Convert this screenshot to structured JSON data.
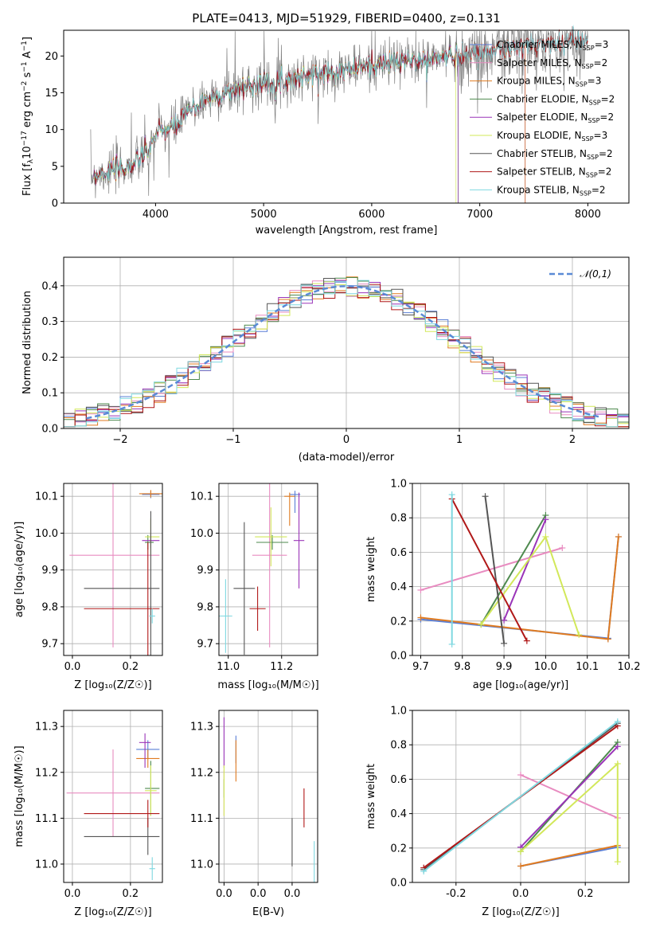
{
  "figure": {
    "title": "PLATE=0413, MJD=51929, FIBERID=0400, z=0.131"
  },
  "colors": {
    "Chabrier MILES": "#5a7fd6",
    "Salpeter MILES": "#e88bc0",
    "Kroupa MILES": "#e07b20",
    "Chabrier ELODIE": "#4e8a4e",
    "Salpeter ELODIE": "#9a34b8",
    "Kroupa ELODIE": "#d2e85a",
    "Chabrier STELIB": "#555555",
    "Salpeter STELIB": "#b01818",
    "Kroupa STELIB": "#7fd8e0"
  },
  "chart_data": [
    {
      "id": "spectrum",
      "type": "line",
      "xlabel": "wavelength [Angstrom, rest frame]",
      "ylabel_parts": {
        "pre": "Flux [f",
        "sub": "λ",
        "mid": "10",
        "sup1": "−17",
        "post1": " erg cm",
        "sup2": "−2",
        "post2": " s",
        "sup3": "−1",
        "post3": " A",
        "sup4": "−1",
        "end": "]"
      },
      "xlim": [
        3150,
        8380
      ],
      "ylim": [
        0,
        23.5
      ],
      "xticks": [
        4000,
        5000,
        6000,
        7000,
        8000
      ],
      "yticks": [
        0,
        5,
        10,
        15,
        20
      ],
      "grid": false,
      "legend_position": "top-right",
      "legend": [
        {
          "model": "Chabrier MILES",
          "nssp": "3"
        },
        {
          "model": "Salpeter MILES",
          "nssp": "2"
        },
        {
          "model": "Kroupa MILES",
          "nssp": "3"
        },
        {
          "model": "Chabrier ELODIE",
          "nssp": "2"
        },
        {
          "model": "Salpeter ELODIE",
          "nssp": "2"
        },
        {
          "model": "Kroupa ELODIE",
          "nssp": "3"
        },
        {
          "model": "Chabrier STELIB",
          "nssp": "2"
        },
        {
          "model": "Salpeter STELIB",
          "nssp": "2"
        },
        {
          "model": "Kroupa STELIB",
          "nssp": "2"
        }
      ],
      "legend_label_mid": ", N",
      "legend_label_sub": "SSP",
      "legend_label_eq": "=",
      "continuum": [
        [
          3400,
          3.8
        ],
        [
          3600,
          4.4
        ],
        [
          3800,
          5.2
        ],
        [
          3950,
          7.5
        ],
        [
          4000,
          9.5
        ],
        [
          4200,
          10.5
        ],
        [
          4300,
          12.5
        ],
        [
          4500,
          14.3
        ],
        [
          4700,
          15.2
        ],
        [
          4900,
          16.2
        ],
        [
          5100,
          16.4
        ],
        [
          5300,
          17.0
        ],
        [
          5500,
          17.6
        ],
        [
          5700,
          18.0
        ],
        [
          5900,
          18.5
        ],
        [
          6100,
          18.9
        ],
        [
          6300,
          19.3
        ],
        [
          6500,
          19.4
        ],
        [
          6700,
          20.0
        ],
        [
          6900,
          20.3
        ],
        [
          7100,
          20.7
        ],
        [
          7300,
          21.0
        ],
        [
          7500,
          21.5
        ],
        [
          7700,
          21.8
        ],
        [
          7900,
          22.4
        ],
        [
          8000,
          22.0
        ]
      ],
      "model_ends": {
        "Chabrier MILES": 7420,
        "Salpeter MILES": 7420,
        "Kroupa MILES": 7420,
        "Chabrier ELODIE": 6800,
        "Salpeter ELODIE": 6800,
        "Kroupa ELODIE": 6780,
        "Chabrier STELIB": 8000,
        "Salpeter STELIB": 8000,
        "Kroupa STELIB": 8000
      }
    },
    {
      "id": "residuals",
      "type": "histogram",
      "xlabel": "(data-model)/error",
      "ylabel": "Normed distribution",
      "xlim": [
        -2.5,
        2.5
      ],
      "ylim": [
        0,
        0.48
      ],
      "xticks": [
        -2,
        -1,
        0,
        1,
        2
      ],
      "yticks": [
        0.0,
        0.1,
        0.2,
        0.3,
        0.4
      ],
      "grid": true,
      "legend_position": "top-right",
      "reference_curve": {
        "name": "𝒩(0,1)",
        "mean": 0,
        "sigma": 1,
        "color": "#5a8ad6"
      },
      "bins": 50
    },
    {
      "id": "age-vs-Z",
      "type": "scatter",
      "xlabel": "Z [log₁₀(Z/Z☉)]",
      "ylabel": "age  [log₁₀(age/yr)]",
      "xlim": [
        -0.03,
        0.31
      ],
      "ylim": [
        9.668,
        10.135
      ],
      "xticks": [
        0.0,
        0.2
      ],
      "yticks": [
        9.7,
        9.8,
        9.9,
        10.0,
        10.1
      ],
      "grid": true,
      "points": [
        {
          "model": "Chabrier MILES",
          "x": 0.27,
          "y": 10.105,
          "xerr": [
            0.03,
            0.03
          ],
          "yerr": [
            0.01,
            0.01
          ]
        },
        {
          "model": "Salpeter MILES",
          "x": 0.14,
          "y": 9.94,
          "xerr": [
            0.15,
            0.16
          ],
          "yerr": [
            0.25,
            0.25
          ]
        },
        {
          "model": "Kroupa MILES",
          "x": 0.27,
          "y": 10.107,
          "xerr": [
            0.04,
            0.04
          ],
          "yerr": [
            0.01,
            0.01
          ]
        },
        {
          "model": "Chabrier ELODIE",
          "x": 0.26,
          "y": 9.975,
          "xerr": [
            0.01,
            0.02
          ],
          "yerr": [
            0.02,
            0.02
          ]
        },
        {
          "model": "Salpeter ELODIE",
          "x": 0.27,
          "y": 9.98,
          "xerr": [
            0.03,
            0.03
          ],
          "yerr": [
            0.02,
            0.02
          ]
        },
        {
          "model": "Kroupa ELODIE",
          "x": 0.27,
          "y": 9.99,
          "xerr": [
            0.02,
            0.03
          ],
          "yerr": [
            0.05,
            0.05
          ]
        },
        {
          "model": "Chabrier STELIB",
          "x": 0.27,
          "y": 9.85,
          "xerr": [
            0.23,
            0.03
          ],
          "yerr": [
            0.21,
            0.21
          ]
        },
        {
          "model": "Salpeter STELIB",
          "x": 0.26,
          "y": 9.795,
          "xerr": [
            0.22,
            0.04
          ],
          "yerr": [
            0.17,
            0.18
          ]
        },
        {
          "model": "Kroupa STELIB",
          "x": 0.275,
          "y": 9.775,
          "xerr": [
            0.01,
            0.01
          ],
          "yerr": [
            0.02,
            0.02
          ]
        }
      ]
    },
    {
      "id": "age-vs-mass",
      "type": "scatter",
      "xlabel": "mass [log₁₀(M/M☉)]",
      "ylabel": "",
      "xlim": [
        10.965,
        11.335
      ],
      "ylim": [
        9.668,
        10.135
      ],
      "xticks": [
        11.0,
        11.2
      ],
      "yticks": [
        9.7,
        9.8,
        9.9,
        10.0,
        10.1
      ],
      "grid": true,
      "points": [
        {
          "model": "Chabrier MILES",
          "x": 11.25,
          "y": 10.105,
          "xerr": [
            0.02,
            0.02
          ],
          "yerr": [
            0.05,
            0.01
          ]
        },
        {
          "model": "Salpeter MILES",
          "x": 11.155,
          "y": 9.94,
          "xerr": [
            0.065,
            0.065
          ],
          "yerr": [
            0.25,
            0.25
          ]
        },
        {
          "model": "Kroupa MILES",
          "x": 11.23,
          "y": 10.1,
          "xerr": [
            0.02,
            0.02
          ],
          "yerr": [
            0.08,
            0.01
          ]
        },
        {
          "model": "Chabrier ELODIE",
          "x": 11.165,
          "y": 9.975,
          "xerr": [
            0.06,
            0.06
          ],
          "yerr": [
            0.02,
            0.02
          ]
        },
        {
          "model": "Salpeter ELODIE",
          "x": 11.265,
          "y": 9.98,
          "xerr": [
            0.02,
            0.02
          ],
          "yerr": [
            0.13,
            0.13
          ]
        },
        {
          "model": "Kroupa ELODIE",
          "x": 11.16,
          "y": 9.99,
          "xerr": [
            0.06,
            0.06
          ],
          "yerr": [
            0.08,
            0.08
          ]
        },
        {
          "model": "Chabrier STELIB",
          "x": 11.06,
          "y": 9.85,
          "xerr": [
            0.04,
            0.04
          ],
          "yerr": [
            0.18,
            0.18
          ]
        },
        {
          "model": "Salpeter STELIB",
          "x": 11.11,
          "y": 9.795,
          "xerr": [
            0.03,
            0.03
          ],
          "yerr": [
            0.06,
            0.06
          ]
        },
        {
          "model": "Kroupa STELIB",
          "x": 10.99,
          "y": 9.775,
          "xerr": [
            0.025,
            0.025
          ],
          "yerr": [
            0.1,
            0.1
          ]
        }
      ]
    },
    {
      "id": "weight-vs-age",
      "type": "line",
      "xlabel": "age  [log₁₀(age/yr)]",
      "ylabel": "mass weight",
      "xlim": [
        9.68,
        10.2
      ],
      "ylim": [
        0,
        1
      ],
      "xticks": [
        9.7,
        9.8,
        9.9,
        10.0,
        10.1,
        10.2
      ],
      "yticks": [
        0.0,
        0.2,
        0.4,
        0.6,
        0.8,
        1.0
      ],
      "grid": true,
      "series": [
        {
          "model": "Chabrier MILES",
          "x": [
            9.7,
            10.15,
            10.175
          ],
          "y": [
            0.21,
            0.1,
            0.69
          ],
          "vbar": false
        },
        {
          "model": "Salpeter MILES",
          "x": [
            9.7,
            10.04
          ],
          "y": [
            0.38,
            0.625
          ],
          "vbar": false
        },
        {
          "model": "Kroupa MILES",
          "x": [
            9.7,
            10.15,
            10.175
          ],
          "y": [
            0.22,
            0.095,
            0.69
          ],
          "vbar": false
        },
        {
          "model": "Chabrier ELODIE",
          "x": [
            9.845,
            10.0
          ],
          "y": [
            0.18,
            0.815
          ],
          "vbar": false
        },
        {
          "model": "Salpeter ELODIE",
          "x": [
            9.9,
            10.0
          ],
          "y": [
            0.205,
            0.79
          ],
          "vbar": false
        },
        {
          "model": "Kroupa ELODIE",
          "x": [
            9.845,
            10.0,
            10.08
          ],
          "y": [
            0.18,
            0.69,
            0.12
          ],
          "vbar": false
        },
        {
          "model": "Chabrier STELIB",
          "x": [
            9.855,
            9.9
          ],
          "y": [
            0.925,
            0.07
          ],
          "vbar": false
        },
        {
          "model": "Salpeter STELIB",
          "x": [
            9.775,
            9.955
          ],
          "y": [
            0.91,
            0.085
          ],
          "vbar": false
        },
        {
          "model": "Kroupa STELIB",
          "x": [
            9.775,
            9.775
          ],
          "y": [
            0.935,
            0.065
          ],
          "vbar": true
        }
      ]
    },
    {
      "id": "mass-vs-Z",
      "type": "scatter",
      "xlabel": "Z [log₁₀(Z/Z☉)]",
      "ylabel": "mass [log₁₀(M/M☉)]",
      "xlim": [
        -0.03,
        0.31
      ],
      "ylim": [
        10.96,
        11.335
      ],
      "xticks": [
        0.0,
        0.2
      ],
      "yticks": [
        11.0,
        11.1,
        11.2,
        11.3
      ],
      "grid": true,
      "points": [
        {
          "model": "Chabrier MILES",
          "x": 0.26,
          "y": 11.25,
          "xerr": [
            0.04,
            0.04
          ],
          "yerr": [
            0.02,
            0.02
          ]
        },
        {
          "model": "Salpeter MILES",
          "x": 0.14,
          "y": 11.155,
          "xerr": [
            0.16,
            0.16
          ],
          "yerr": [
            0.095,
            0.095
          ]
        },
        {
          "model": "Kroupa MILES",
          "x": 0.26,
          "y": 11.23,
          "xerr": [
            0.04,
            0.04
          ],
          "yerr": [
            0.02,
            0.02
          ]
        },
        {
          "model": "Chabrier ELODIE",
          "x": 0.27,
          "y": 11.165,
          "xerr": [
            0.02,
            0.03
          ],
          "yerr": [
            0.06,
            0.06
          ]
        },
        {
          "model": "Salpeter ELODIE",
          "x": 0.25,
          "y": 11.265,
          "xerr": [
            0.02,
            0.02
          ],
          "yerr": [
            0.055,
            0.02
          ]
        },
        {
          "model": "Kroupa ELODIE",
          "x": 0.27,
          "y": 11.16,
          "xerr": [
            0.02,
            0.02
          ],
          "yerr": [
            0.055,
            0.055
          ]
        },
        {
          "model": "Chabrier STELIB",
          "x": 0.26,
          "y": 11.06,
          "xerr": [
            0.22,
            0.04
          ],
          "yerr": [
            0.04,
            0.04
          ]
        },
        {
          "model": "Salpeter STELIB",
          "x": 0.26,
          "y": 11.11,
          "xerr": [
            0.22,
            0.04
          ],
          "yerr": [
            0.03,
            0.03
          ]
        },
        {
          "model": "Kroupa STELIB",
          "x": 0.275,
          "y": 10.99,
          "xerr": [
            0.01,
            0.01
          ],
          "yerr": [
            0.025,
            0.025
          ]
        }
      ]
    },
    {
      "id": "mass-vs-EBV",
      "type": "scatter",
      "xlabel": "E(B-V)",
      "ylabel": "",
      "xlim": [
        -0.0015,
        0.0275
      ],
      "ylim": [
        10.96,
        11.335
      ],
      "xticks": [
        0.0,
        0.01,
        0.02
      ],
      "yticks": [
        11.0,
        11.1,
        11.2,
        11.3
      ],
      "grid": true,
      "points": [
        {
          "model": "Chabrier MILES",
          "x": 0.0035,
          "y": 11.25,
          "xerr": [
            0,
            0
          ],
          "yerr": [
            0.03,
            0.03
          ]
        },
        {
          "model": "Salpeter MILES",
          "x": 0.0,
          "y": 11.155,
          "xerr": [
            0,
            0
          ],
          "yerr": [
            0.05,
            0.05
          ]
        },
        {
          "model": "Kroupa MILES",
          "x": 0.0035,
          "y": 11.23,
          "xerr": [
            0,
            0
          ],
          "yerr": [
            0.05,
            0.04
          ]
        },
        {
          "model": "Chabrier ELODIE",
          "x": 0.0,
          "y": 11.165,
          "xerr": [
            0,
            0
          ],
          "yerr": [
            0.02,
            0.02
          ]
        },
        {
          "model": "Salpeter ELODIE",
          "x": 0.0,
          "y": 11.265,
          "xerr": [
            0,
            0
          ],
          "yerr": [
            0.055,
            0.055
          ]
        },
        {
          "model": "Kroupa ELODIE",
          "x": 0.0,
          "y": 11.16,
          "xerr": [
            0,
            0
          ],
          "yerr": [
            0.055,
            0.055
          ]
        },
        {
          "model": "Chabrier STELIB",
          "x": 0.02,
          "y": 11.06,
          "xerr": [
            0,
            0
          ],
          "yerr": [
            0.065,
            0.04
          ]
        },
        {
          "model": "Salpeter STELIB",
          "x": 0.0235,
          "y": 11.11,
          "xerr": [
            0,
            0
          ],
          "yerr": [
            0.03,
            0.055
          ]
        },
        {
          "model": "Kroupa STELIB",
          "x": 0.0265,
          "y": 11.0,
          "xerr": [
            0,
            0
          ],
          "yerr": [
            0.05,
            0.05
          ]
        }
      ]
    },
    {
      "id": "weight-vs-Z",
      "type": "line",
      "xlabel": "Z [log₁₀(Z/Z☉)]",
      "ylabel": "mass weight",
      "xlim": [
        -0.335,
        0.335
      ],
      "ylim": [
        0,
        1
      ],
      "xticks": [
        -0.2,
        0.0,
        0.2
      ],
      "yticks": [
        0.0,
        0.2,
        0.4,
        0.6,
        0.8,
        1.0
      ],
      "grid": true,
      "series": [
        {
          "model": "Chabrier MILES",
          "x": [
            0.0,
            0.3
          ],
          "y": [
            0.095,
            0.205
          ],
          "vbar": false
        },
        {
          "model": "Salpeter MILES",
          "x": [
            0.0,
            0.3
          ],
          "y": [
            0.625,
            0.375
          ],
          "vbar": false
        },
        {
          "model": "Kroupa MILES",
          "x": [
            0.0,
            0.3
          ],
          "y": [
            0.095,
            0.215
          ],
          "vbar": false
        },
        {
          "model": "Chabrier ELODIE",
          "x": [
            0.0,
            0.3
          ],
          "y": [
            0.18,
            0.815
          ],
          "vbar": false
        },
        {
          "model": "Salpeter ELODIE",
          "x": [
            0.0,
            0.3
          ],
          "y": [
            0.205,
            0.79
          ],
          "vbar": false
        },
        {
          "model": "Kroupa ELODIE",
          "x": [
            0.0,
            0.3,
            0.3
          ],
          "y": [
            0.18,
            0.69,
            0.12
          ],
          "vbar": false
        },
        {
          "model": "Chabrier STELIB",
          "x": [
            -0.3,
            0.3
          ],
          "y": [
            0.075,
            0.925
          ],
          "vbar": false
        },
        {
          "model": "Salpeter STELIB",
          "x": [
            -0.3,
            0.3
          ],
          "y": [
            0.085,
            0.91
          ],
          "vbar": false
        },
        {
          "model": "Kroupa STELIB",
          "x": [
            -0.3,
            0.3
          ],
          "y": [
            0.065,
            0.935
          ],
          "vbar": false
        }
      ]
    }
  ]
}
